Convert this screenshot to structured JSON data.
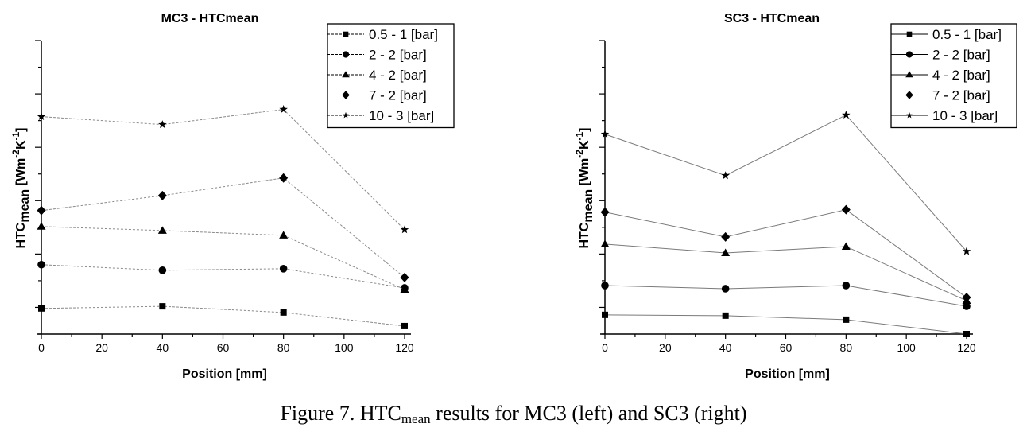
{
  "figure": {
    "caption_prefix": "Figure 7. HTC",
    "caption_sub": "mean",
    "caption_suffix": " results for MC3 (left) and SC3 (right)"
  },
  "chart_data": [
    {
      "type": "line",
      "title": "MC3 - HTCmean",
      "xlabel": "Position [mm]",
      "ylabel_main": "HTC",
      "ylabel_sub": "mean",
      "ylabel_unit": " [Wm",
      "ylabel_sup1": "-2",
      "ylabel_unit2": "K",
      "ylabel_sup2": "-1",
      "ylabel_end": "]",
      "line_style": "dashed",
      "x": [
        0,
        40,
        80,
        120
      ],
      "xlim": [
        0,
        120
      ],
      "xticks": [
        0,
        20,
        40,
        60,
        80,
        100,
        120
      ],
      "ylim": [
        0,
        11
      ],
      "y_tick_labels_shown": false,
      "y_units_note": "relative (no y tick labels shown)",
      "grid": false,
      "legend_position": "top-right",
      "series": [
        {
          "name": "0.5 - 1 [bar]",
          "marker": "square",
          "values": [
            0.96,
            1.04,
            0.81,
            0.3
          ]
        },
        {
          "name": "2 - 2 [bar]",
          "marker": "circle",
          "values": [
            2.6,
            2.39,
            2.45,
            1.73
          ]
        },
        {
          "name": "4 - 2 [bar]",
          "marker": "triangle",
          "values": [
            4.03,
            3.88,
            3.7,
            1.67
          ]
        },
        {
          "name": "7 - 2 [bar]",
          "marker": "diamond",
          "values": [
            4.63,
            5.19,
            5.85,
            2.12
          ]
        },
        {
          "name": "10 - 3 [bar]",
          "marker": "star",
          "values": [
            8.15,
            7.85,
            8.42,
            3.91
          ]
        }
      ]
    },
    {
      "type": "line",
      "title": "SC3 - HTCmean",
      "xlabel": "Position [mm]",
      "ylabel_main": "HTC",
      "ylabel_sub": "mean",
      "ylabel_unit": " [Wm",
      "ylabel_sup1": "-2",
      "ylabel_unit2": "K",
      "ylabel_sup2": "-1",
      "ylabel_end": "]",
      "line_style": "solid",
      "x": [
        0,
        40,
        80,
        120
      ],
      "xlim": [
        0,
        120
      ],
      "xticks": [
        0,
        20,
        40,
        60,
        80,
        100,
        120
      ],
      "ylim": [
        0,
        11
      ],
      "y_tick_labels_shown": false,
      "y_units_note": "relative (no y tick labels shown)",
      "grid": false,
      "legend_position": "top-right",
      "series": [
        {
          "name": "0.5 - 1 [bar]",
          "marker": "square",
          "values": [
            0.72,
            0.69,
            0.54,
            0.0
          ]
        },
        {
          "name": "2 - 2 [bar]",
          "marker": "circle",
          "values": [
            1.82,
            1.7,
            1.82,
            1.04
          ]
        },
        {
          "name": "4 - 2 [bar]",
          "marker": "triangle",
          "values": [
            3.37,
            3.04,
            3.28,
            1.25
          ]
        },
        {
          "name": "7 - 2 [bar]",
          "marker": "diamond",
          "values": [
            4.57,
            3.64,
            4.66,
            1.37
          ]
        },
        {
          "name": "10 - 3 [bar]",
          "marker": "star",
          "values": [
            7.49,
            5.94,
            8.21,
            3.1
          ]
        }
      ]
    }
  ]
}
